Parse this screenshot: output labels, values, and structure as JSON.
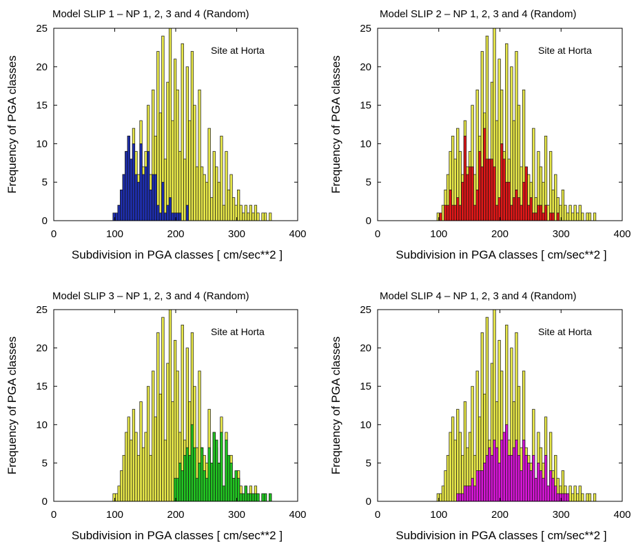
{
  "figure": {
    "background": "#ffffff"
  },
  "chart_data": [
    {
      "type": "bar",
      "title": "Model SLIP 1 – NP 1, 2, 3 and 4 (Random)",
      "annotation": "Site at Horta",
      "xlabel": "Subdivision in PGA classes [ cm/sec**2 ]",
      "ylabel": "Frequency of PGA classes",
      "xlim": [
        0,
        400
      ],
      "ylim": [
        0,
        25
      ],
      "xticks": [
        "0",
        "100",
        "200",
        "300",
        "400"
      ],
      "yticks": [
        "0",
        "5",
        "10",
        "15",
        "20",
        "25"
      ],
      "bin_start": 97,
      "bin_width": 4,
      "series": [
        {
          "color": "#e8e84a",
          "values": [
            1,
            1,
            2,
            4,
            6,
            9,
            11,
            8,
            12,
            9,
            6,
            13,
            7,
            9,
            15,
            6,
            17,
            11,
            22,
            14,
            24,
            8,
            18,
            25,
            13,
            21,
            17,
            9,
            23,
            8,
            20,
            13,
            22,
            15,
            7,
            17,
            7,
            6,
            5,
            12,
            3,
            9,
            7,
            5,
            11,
            2,
            9,
            4,
            6,
            3,
            2,
            4,
            2,
            1,
            2,
            1,
            2,
            1,
            2,
            1,
            0,
            1,
            1,
            0,
            1,
            0
          ]
        },
        {
          "color": "#1f2fb0",
          "values": [
            1,
            1,
            2,
            4,
            6,
            9,
            11,
            8,
            10,
            6,
            5,
            10,
            6,
            7,
            9,
            4,
            6,
            6,
            2,
            1,
            5,
            1,
            2,
            3,
            1,
            1,
            1,
            1,
            0,
            0,
            2,
            0,
            0,
            0,
            0,
            0,
            0,
            0,
            0,
            0,
            0,
            0,
            0,
            0,
            0,
            0,
            0,
            0,
            0,
            0,
            0,
            0,
            0,
            0,
            0,
            0,
            0,
            0,
            0,
            0,
            0,
            0,
            0,
            0,
            0,
            0
          ]
        }
      ]
    },
    {
      "type": "bar",
      "title": "Model SLIP 2 – NP 1, 2, 3 and 4 (Random)",
      "annotation": "Site at Horta",
      "xlabel": "Subdivision in PGA classes [ cm/sec**2 ]",
      "ylabel": "Frequency of PGA classes",
      "xlim": [
        0,
        400
      ],
      "ylim": [
        0,
        25
      ],
      "xticks": [
        "0",
        "100",
        "200",
        "300",
        "400"
      ],
      "yticks": [
        "0",
        "5",
        "10",
        "15",
        "20",
        "25"
      ],
      "bin_start": 97,
      "bin_width": 4,
      "series": [
        {
          "color": "#e8e84a",
          "values": [
            1,
            1,
            2,
            4,
            6,
            9,
            11,
            8,
            12,
            9,
            6,
            13,
            7,
            9,
            15,
            6,
            17,
            11,
            22,
            14,
            24,
            8,
            18,
            25,
            13,
            21,
            17,
            9,
            23,
            8,
            20,
            13,
            22,
            15,
            7,
            17,
            7,
            6,
            5,
            12,
            3,
            9,
            7,
            5,
            11,
            2,
            9,
            4,
            6,
            3,
            2,
            4,
            2,
            1,
            2,
            1,
            2,
            1,
            2,
            1,
            0,
            1,
            1,
            0,
            1,
            0
          ]
        },
        {
          "color": "#e01818",
          "values": [
            0,
            1,
            0,
            2,
            2,
            4,
            2,
            2,
            3,
            2,
            5,
            11,
            6,
            7,
            7,
            2,
            4,
            9,
            7,
            12,
            8,
            8,
            8,
            7,
            2,
            3,
            10,
            8,
            5,
            5,
            2,
            3,
            4,
            3,
            2,
            5,
            7,
            2,
            3,
            1,
            1,
            2,
            2,
            1,
            2,
            0,
            1,
            1,
            0,
            1,
            0,
            0,
            0,
            0,
            0,
            0,
            0,
            0,
            0,
            0,
            0,
            0,
            0,
            0,
            0,
            0
          ]
        }
      ]
    },
    {
      "type": "bar",
      "title": "Model SLIP 3 – NP 1, 2, 3 and 4 (Random)",
      "annotation": "Site at Horta",
      "xlabel": "Subdivision in PGA classes [ cm/sec**2 ]",
      "ylabel": "Frequency of PGA classes",
      "xlim": [
        0,
        400
      ],
      "ylim": [
        0,
        25
      ],
      "xticks": [
        "0",
        "100",
        "200",
        "300",
        "400"
      ],
      "yticks": [
        "0",
        "5",
        "10",
        "15",
        "20",
        "25"
      ],
      "bin_start": 97,
      "bin_width": 4,
      "series": [
        {
          "color": "#e8e84a",
          "values": [
            1,
            1,
            2,
            4,
            6,
            9,
            11,
            8,
            12,
            9,
            6,
            13,
            7,
            9,
            15,
            6,
            17,
            11,
            22,
            14,
            24,
            8,
            18,
            25,
            13,
            21,
            17,
            9,
            23,
            8,
            20,
            13,
            22,
            15,
            7,
            17,
            7,
            6,
            5,
            12,
            3,
            9,
            7,
            5,
            11,
            2,
            9,
            4,
            6,
            3,
            2,
            4,
            2,
            1,
            2,
            1,
            2,
            1,
            2,
            1,
            0,
            1,
            1,
            0,
            1,
            0
          ]
        },
        {
          "color": "#22c522",
          "values": [
            0,
            0,
            0,
            0,
            0,
            0,
            0,
            0,
            0,
            0,
            0,
            0,
            0,
            0,
            0,
            0,
            0,
            0,
            0,
            0,
            0,
            0,
            0,
            0,
            0,
            3,
            3,
            5,
            4,
            6,
            7,
            6,
            10,
            7,
            3,
            5,
            7,
            4,
            3,
            7,
            5,
            9,
            8,
            5,
            9,
            2,
            8,
            6,
            5,
            3,
            4,
            3,
            1,
            1,
            2,
            1,
            1,
            1,
            1,
            1,
            0,
            1,
            1,
            0,
            1,
            0
          ]
        }
      ]
    },
    {
      "type": "bar",
      "title": "Model SLIP 4 – NP 1, 2, 3 and 4 (Random)",
      "annotation": "Site at Horta",
      "xlabel": "Subdivision in PGA classes [ cm/sec**2 ]",
      "ylabel": "Frequency of PGA classes",
      "xlim": [
        0,
        400
      ],
      "ylim": [
        0,
        25
      ],
      "xticks": [
        "0",
        "100",
        "200",
        "300",
        "400"
      ],
      "yticks": [
        "0",
        "5",
        "10",
        "15",
        "20",
        "25"
      ],
      "bin_start": 97,
      "bin_width": 4,
      "series": [
        {
          "color": "#e8e84a",
          "values": [
            1,
            1,
            2,
            4,
            6,
            9,
            11,
            8,
            12,
            9,
            6,
            13,
            7,
            9,
            15,
            6,
            17,
            11,
            22,
            14,
            24,
            8,
            18,
            25,
            13,
            21,
            17,
            9,
            23,
            8,
            20,
            13,
            22,
            15,
            7,
            17,
            7,
            6,
            5,
            12,
            3,
            9,
            7,
            5,
            11,
            2,
            9,
            4,
            6,
            3,
            2,
            4,
            2,
            1,
            2,
            1,
            2,
            1,
            2,
            1,
            0,
            1,
            1,
            0,
            1,
            0
          ]
        },
        {
          "color": "#d616d6",
          "values": [
            0,
            0,
            0,
            0,
            0,
            0,
            0,
            0,
            1,
            1,
            1,
            2,
            2,
            2,
            3,
            2,
            4,
            4,
            4,
            5,
            6,
            7,
            6,
            8,
            7,
            5,
            8,
            9,
            10,
            6,
            6,
            7,
            8,
            6,
            4,
            8,
            6,
            5,
            4,
            6,
            3,
            5,
            4,
            3,
            6,
            2,
            4,
            3,
            2,
            1,
            1,
            1,
            1,
            1,
            0,
            0,
            0,
            0,
            0,
            0,
            0,
            0,
            0,
            0,
            0,
            0
          ]
        }
      ]
    }
  ]
}
